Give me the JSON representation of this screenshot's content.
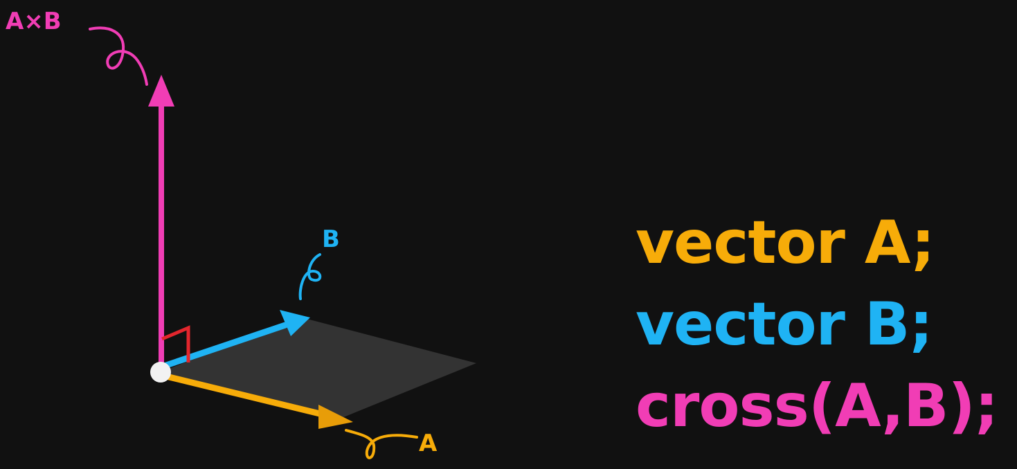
{
  "labels": {
    "cross_label": "A×B",
    "vector_a_label": "A",
    "vector_b_label": "B"
  },
  "code": {
    "line1": "vector A;",
    "line2": "vector B;",
    "line3": "cross(A,B);"
  },
  "colors": {
    "background": "#111111",
    "vector_a": "#f7ac09",
    "vector_b": "#1fb3f4",
    "cross": "#f13db5",
    "right_angle": "#e3262d",
    "plane": "#3a3a3a",
    "origin": "#f2f2f2"
  },
  "icons": {
    "origin": "origin-dot-icon",
    "right_angle": "right-angle-icon"
  }
}
